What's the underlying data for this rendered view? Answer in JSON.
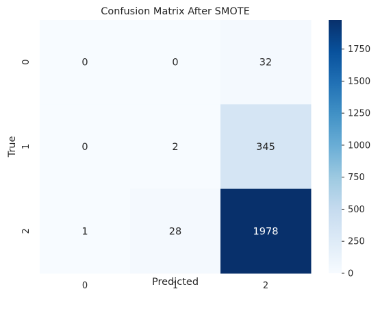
{
  "chart_data": {
    "type": "heatmap",
    "title": "Confusion Matrix After SMOTE",
    "xlabel": "Predicted",
    "ylabel": "True",
    "x_categories": [
      "0",
      "1",
      "2"
    ],
    "y_categories": [
      "0",
      "1",
      "2"
    ],
    "values": [
      [
        0,
        0,
        32
      ],
      [
        0,
        2,
        345
      ],
      [
        1,
        28,
        1978
      ]
    ],
    "colormap": "Blues",
    "vmin": 0,
    "vmax": 1978,
    "colorbar_ticks": [
      "0",
      "250",
      "500",
      "750",
      "1000",
      "1250",
      "1500",
      "1750"
    ],
    "colorbar_tick_values": [
      0,
      250,
      500,
      750,
      1000,
      1250,
      1500,
      1750
    ],
    "grid": false,
    "legend": "colorbar-right"
  }
}
